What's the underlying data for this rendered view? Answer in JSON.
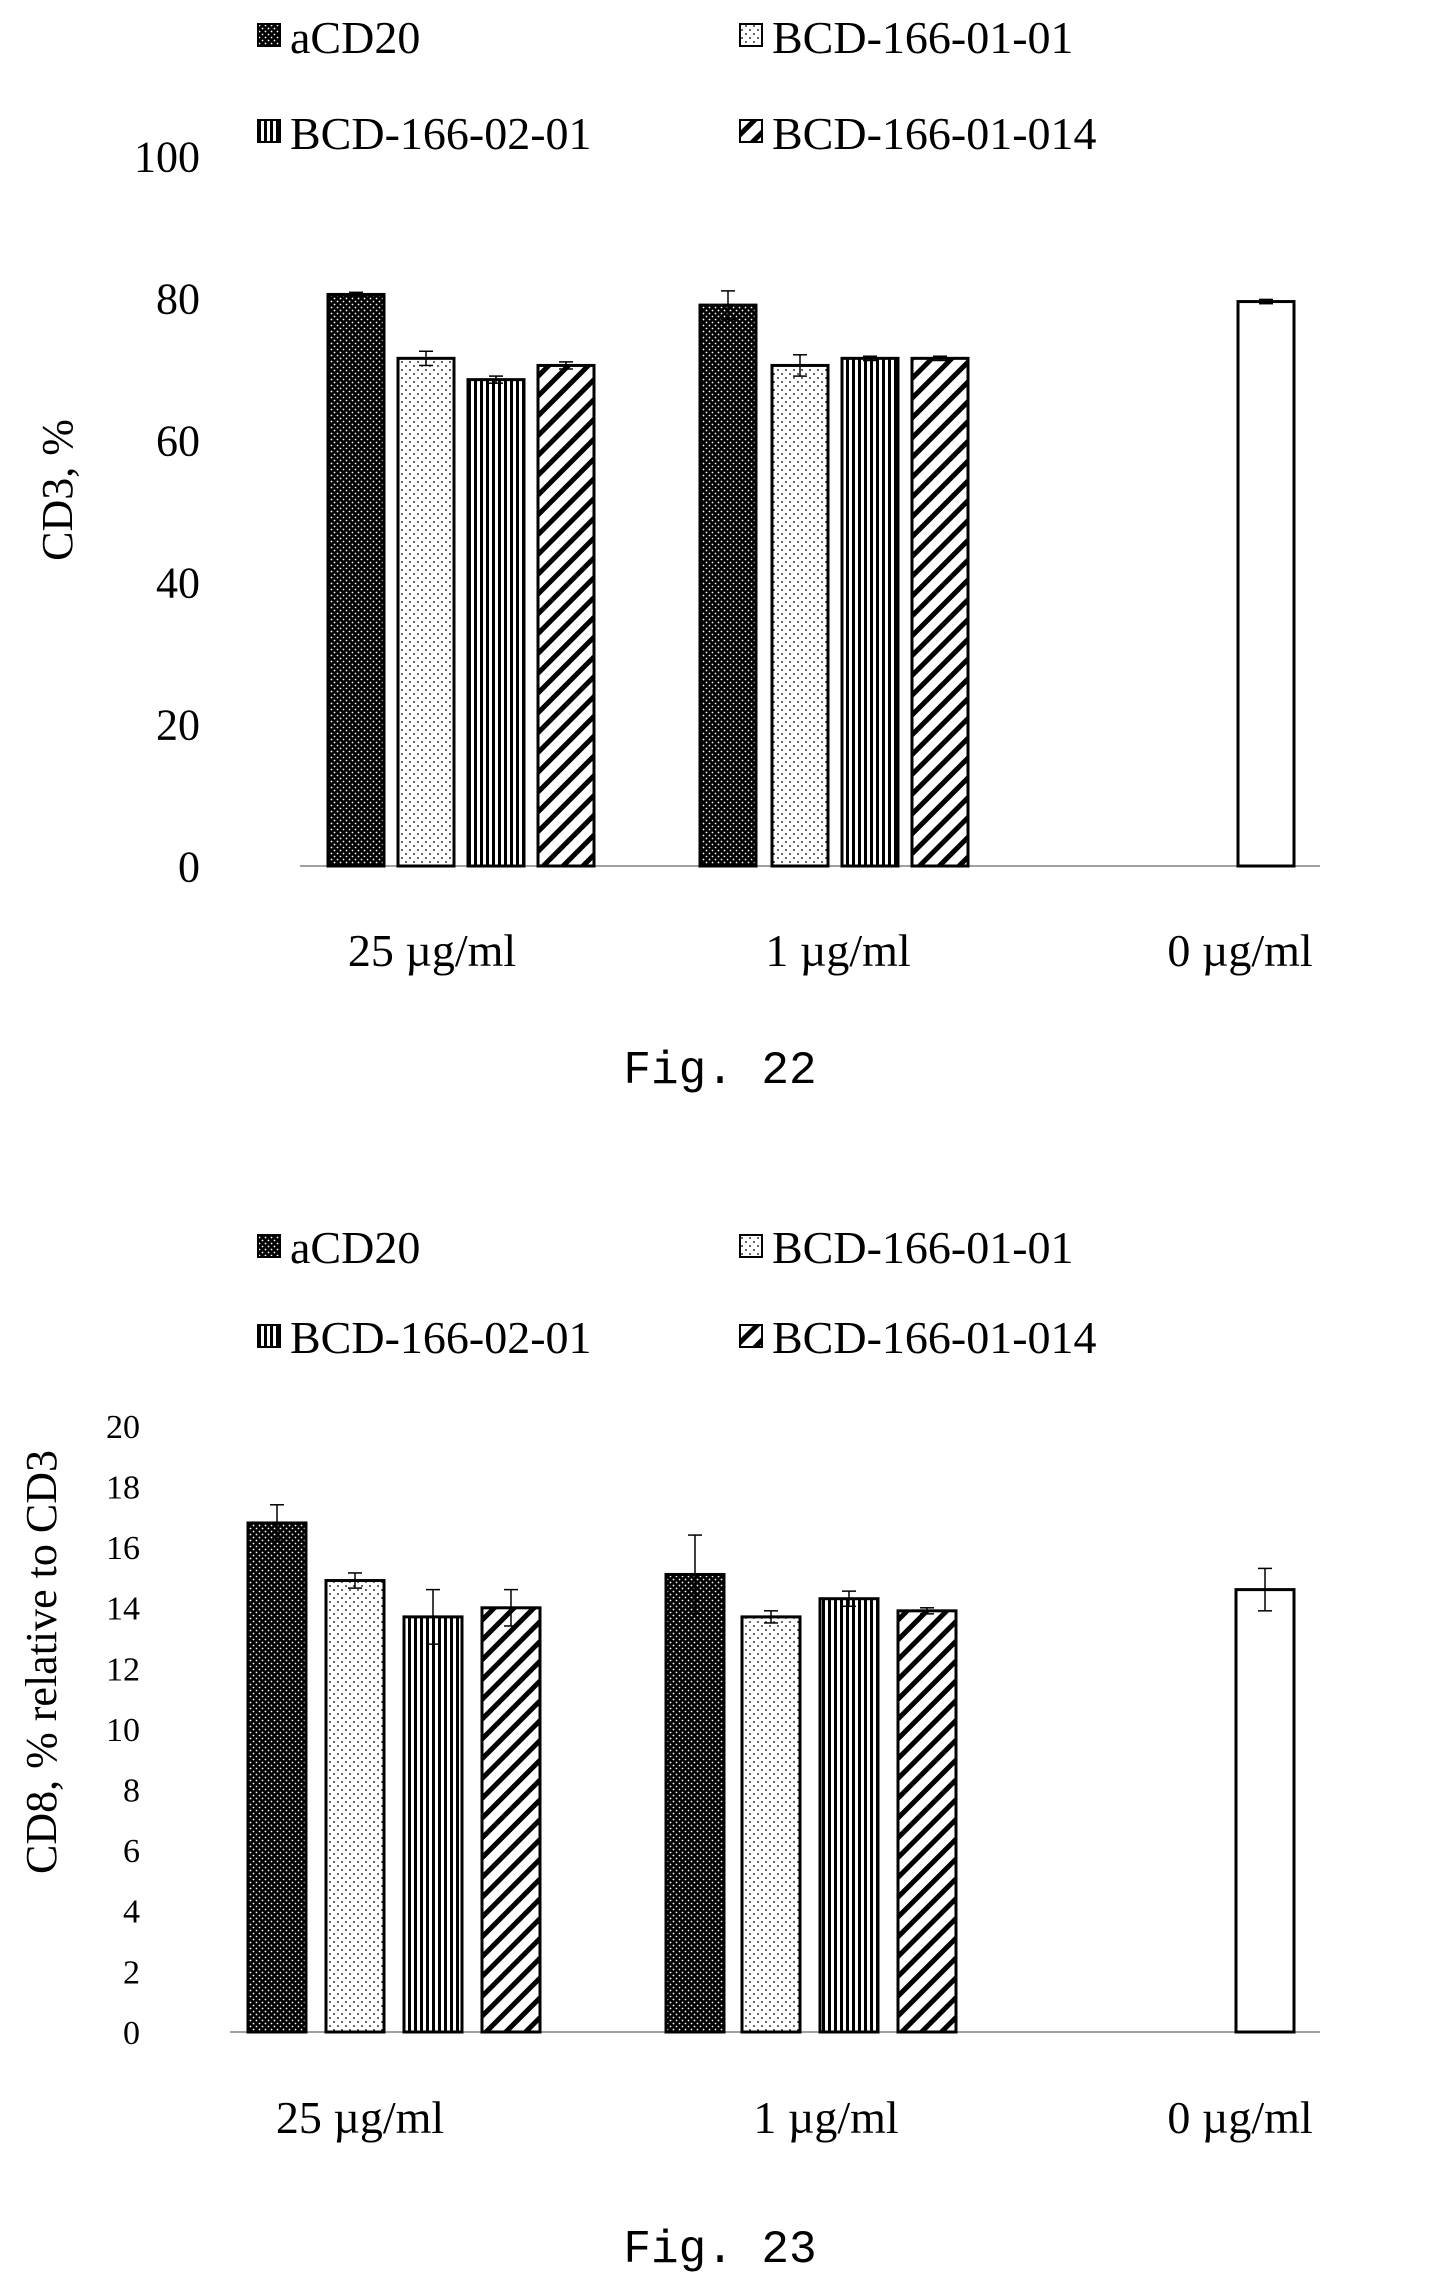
{
  "colors": {
    "ink": "#000000",
    "paper": "#ffffff"
  },
  "chart_data": [
    {
      "type": "bar",
      "figure_label": "Fig. 22",
      "title": "",
      "xlabel": "",
      "ylabel": "CD3, %",
      "ylim": [
        0,
        100
      ],
      "yticks": [
        "0",
        "20",
        "40",
        "60",
        "80",
        "100"
      ],
      "grid": false,
      "legend_position": "top",
      "categories": [
        "25 µg/ml",
        "1 µg/ml",
        "0 µg/ml"
      ],
      "series": [
        {
          "name": "aCD20",
          "pattern": "dense-dots",
          "values": [
            80.5,
            79.0,
            null
          ],
          "errors": [
            0.3,
            2.0,
            null
          ]
        },
        {
          "name": "BCD-166-01-01",
          "pattern": "light-dots",
          "values": [
            71.5,
            70.5,
            null
          ],
          "errors": [
            1.0,
            1.5,
            null
          ]
        },
        {
          "name": "BCD-166-02-01",
          "pattern": "vertical-lines",
          "values": [
            68.5,
            71.5,
            null
          ],
          "errors": [
            0.5,
            0.3,
            null
          ]
        },
        {
          "name": "BCD-166-01-014",
          "pattern": "diagonal-hatch",
          "values": [
            70.5,
            71.5,
            null
          ],
          "errors": [
            0.5,
            0.3,
            null
          ]
        },
        {
          "name": "",
          "pattern": "empty",
          "values": [
            null,
            null,
            79.5
          ],
          "errors": [
            null,
            null,
            0.3
          ]
        }
      ]
    },
    {
      "type": "bar",
      "figure_label": "Fig. 23",
      "title": "",
      "xlabel": "",
      "ylabel": "CD8, % relative to CD3",
      "ylim": [
        0,
        20
      ],
      "yticks": [
        "0",
        "2",
        "4",
        "6",
        "8",
        "10",
        "12",
        "14",
        "16",
        "18",
        "20"
      ],
      "grid": false,
      "legend_position": "top",
      "categories": [
        "25 µg/ml",
        "1 µg/ml",
        "0 µg/ml"
      ],
      "series": [
        {
          "name": "aCD20",
          "pattern": "dense-dots",
          "values": [
            16.8,
            15.1,
            null
          ],
          "errors": [
            0.6,
            1.3,
            null
          ]
        },
        {
          "name": "BCD-166-01-01",
          "pattern": "light-dots",
          "values": [
            14.9,
            13.7,
            null
          ],
          "errors": [
            0.25,
            0.2,
            null
          ]
        },
        {
          "name": "BCD-166-02-01",
          "pattern": "vertical-lines",
          "values": [
            13.7,
            14.3,
            null
          ],
          "errors": [
            0.9,
            0.25,
            null
          ]
        },
        {
          "name": "BCD-166-01-014",
          "pattern": "diagonal-hatch",
          "values": [
            14.0,
            13.9,
            null
          ],
          "errors": [
            0.6,
            0.1,
            null
          ]
        },
        {
          "name": "",
          "pattern": "empty",
          "values": [
            null,
            null,
            14.6
          ],
          "errors": [
            null,
            null,
            0.7
          ]
        }
      ]
    }
  ]
}
